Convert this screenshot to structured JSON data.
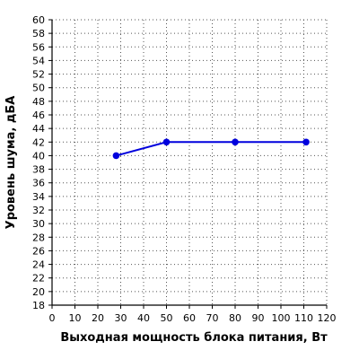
{
  "chart_data": {
    "type": "line",
    "xlabel": "Выходная мощность блока питания, Вт",
    "ylabel": "Уровень шума, дБА",
    "xlim": [
      0,
      120
    ],
    "ylim": [
      18,
      60
    ],
    "x_ticks": [
      0,
      10,
      20,
      30,
      40,
      50,
      60,
      70,
      80,
      90,
      100,
      110,
      120
    ],
    "y_ticks": [
      18,
      20,
      22,
      24,
      26,
      28,
      30,
      32,
      34,
      36,
      38,
      40,
      42,
      44,
      46,
      48,
      50,
      52,
      54,
      56,
      58,
      60
    ],
    "x_tick_labels": [
      "0",
      "10",
      "20",
      "30",
      "40",
      "50",
      "60",
      "70",
      "80",
      "90",
      "100",
      "110",
      "120"
    ],
    "y_tick_labels": [
      "18",
      "20",
      "22",
      "24",
      "26",
      "28",
      "30",
      "32",
      "34",
      "36",
      "38",
      "40",
      "42",
      "44",
      "46",
      "48",
      "50",
      "52",
      "54",
      "56",
      "58",
      "60"
    ],
    "grid": true,
    "series": [
      {
        "x": [
          28,
          50,
          80,
          111
        ],
        "y": [
          40,
          42,
          42,
          42
        ],
        "color": "#0000dd"
      }
    ]
  }
}
